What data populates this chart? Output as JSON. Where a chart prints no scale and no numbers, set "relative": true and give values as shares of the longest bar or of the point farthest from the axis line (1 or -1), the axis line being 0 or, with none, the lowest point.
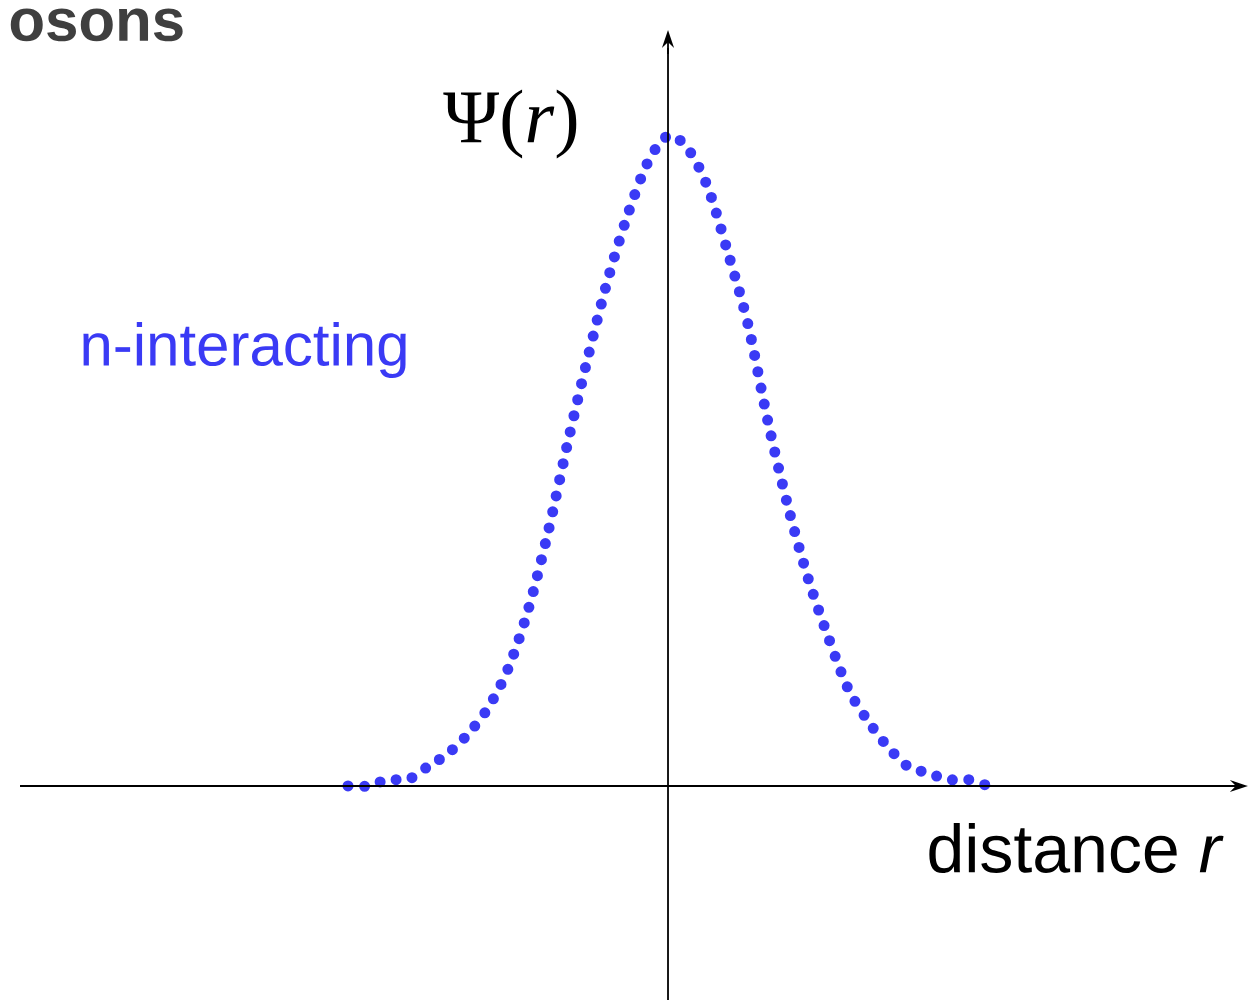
{
  "chart_data": {
    "type": "line",
    "title": "osons",
    "ylabel": "Ψ(*r*)",
    "xlabel": "distance *r*",
    "relative": true,
    "line_style": "dotted",
    "categories": [
      null,
      null,
      null,
      null,
      null,
      null,
      null,
      null,
      null,
      null,
      null,
      null,
      null,
      null,
      null,
      null,
      null,
      null,
      null,
      null,
      null,
      null,
      null,
      null,
      null,
      null,
      null,
      null,
      null,
      null,
      null,
      null,
      null
    ],
    "series": [
      {
        "name": "n-interacting",
        "color": "#3a3af5",
        "values": [
          0,
          0,
          0.01,
          0.01,
          0.03,
          0.05,
          0.08,
          0.12,
          0.18,
          0.27,
          0.39,
          0.53,
          0.66,
          0.78,
          0.88,
          0.96,
          1,
          0.98,
          0.92,
          0.82,
          0.71,
          0.56,
          0.43,
          0.32,
          0.23,
          0.15,
          0.1,
          0.06,
          0.03,
          0.02,
          0.01,
          0.01,
          0
        ]
      }
    ]
  }
}
